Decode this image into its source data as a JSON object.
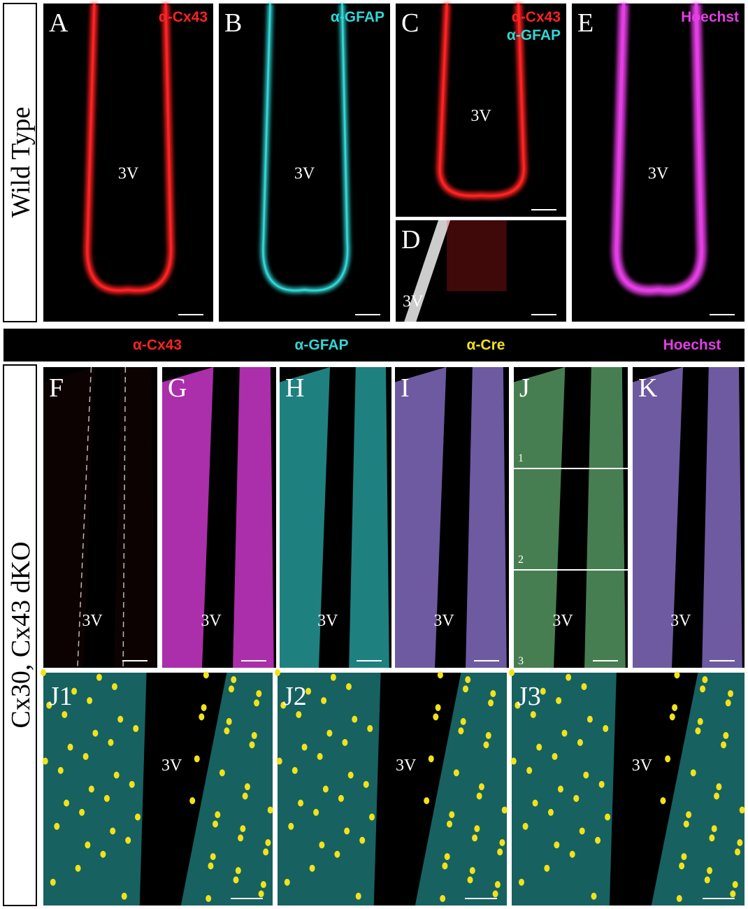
{
  "row_labels": [
    "Wild Type",
    "Cx30, Cx43 dKO"
  ],
  "top_panels": [
    {
      "letter": "A",
      "stains": [
        "α-Cx43"
      ],
      "region": "3V"
    },
    {
      "letter": "B",
      "stains": [
        "α-GFAP"
      ],
      "region": "3V"
    },
    {
      "letter": "C",
      "stains": [
        "α-Cx43",
        "α-GFAP"
      ],
      "region": "3V"
    },
    {
      "letter": "D",
      "region": "3V"
    },
    {
      "letter": "E",
      "stains": [
        "Hoechst"
      ],
      "region": "3V"
    }
  ],
  "legend_bar": [
    "α-Cx43",
    "α-GFAP",
    "α-Cre",
    "Hoechst"
  ],
  "middle_panels": [
    {
      "letter": "F",
      "region": "3V"
    },
    {
      "letter": "G",
      "region": "3V"
    },
    {
      "letter": "H",
      "region": "3V"
    },
    {
      "letter": "I",
      "region": "3V"
    },
    {
      "letter": "J",
      "region": "3V",
      "sections": [
        "1",
        "2",
        "3"
      ]
    },
    {
      "letter": "K",
      "region": "3V"
    }
  ],
  "bottom_panels": [
    {
      "letter": "J1",
      "region": "3V"
    },
    {
      "letter": "J2",
      "region": "3V"
    },
    {
      "letter": "J3",
      "region": "3V"
    }
  ]
}
